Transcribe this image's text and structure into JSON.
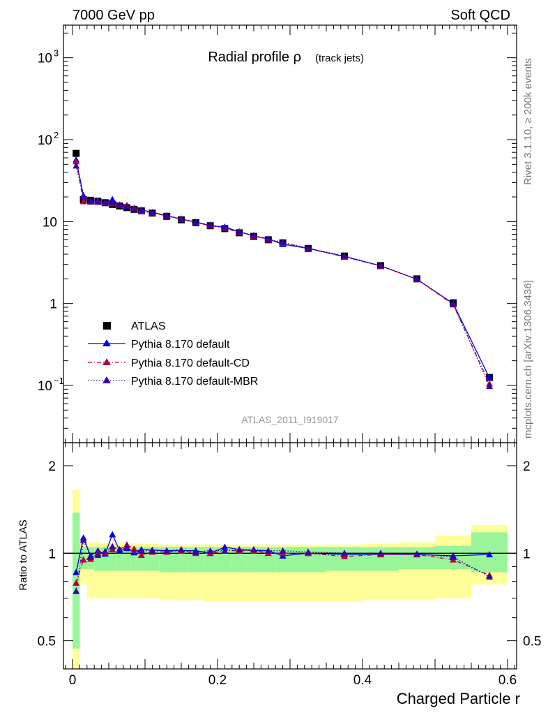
{
  "header": {
    "left": "7000 GeV pp",
    "right": "Soft QCD"
  },
  "side_labels": {
    "rivet": "Rivet 3.1.10, ≥ 200k events",
    "mcplots": "mcplots.cern.ch [arXiv:1306.3436]"
  },
  "chart_data": [
    {
      "type": "scatter",
      "title_main": "Radial profile ρ",
      "title_sub": "(track jets)",
      "watermark": "ATLAS_2011_I919017",
      "yscale": "log",
      "ylim": [
        0.02,
        2500
      ],
      "xlim": [
        -0.0125,
        0.6125
      ],
      "yticks_major": [
        {
          "value": 1000,
          "base": "10",
          "exp": "3"
        },
        {
          "value": 100,
          "base": "10",
          "exp": "2"
        },
        {
          "value": 10,
          "base": "10",
          "exp": ""
        },
        {
          "value": 1,
          "base": "1",
          "exp": ""
        },
        {
          "value": 0.1,
          "base": "10",
          "exp": "−1"
        }
      ],
      "legend_position": "lower-left",
      "series": [
        {
          "name": "ATLAS",
          "style": "square",
          "color": "#000000",
          "line": "none",
          "x": [
            0.005,
            0.015,
            0.025,
            0.035,
            0.045,
            0.055,
            0.065,
            0.075,
            0.085,
            0.095,
            0.11,
            0.13,
            0.15,
            0.17,
            0.19,
            0.21,
            0.23,
            0.25,
            0.27,
            0.29,
            0.325,
            0.375,
            0.425,
            0.475,
            0.525,
            0.575
          ],
          "y": [
            68,
            18.5,
            18.2,
            17.7,
            17,
            16.2,
            15.5,
            14.8,
            14.1,
            13.5,
            12.7,
            11.6,
            10.5,
            9.7,
            8.9,
            8.2,
            7.3,
            6.6,
            6.0,
            5.5,
            4.7,
            3.8,
            2.9,
            2.0,
            1.02,
            0.125
          ]
        },
        {
          "name": "Pythia 8.170 default",
          "style": "triangle",
          "color": "#0000e6",
          "line": "solid",
          "x": [
            0.005,
            0.015,
            0.025,
            0.035,
            0.045,
            0.055,
            0.065,
            0.075,
            0.085,
            0.095,
            0.11,
            0.13,
            0.15,
            0.17,
            0.19,
            0.21,
            0.23,
            0.25,
            0.27,
            0.29,
            0.325,
            0.375,
            0.425,
            0.475,
            0.525,
            0.575
          ],
          "y": [
            57,
            20.9,
            17.8,
            18.0,
            16.9,
            18.7,
            15.8,
            15.4,
            14.3,
            13.9,
            13.0,
            11.8,
            10.7,
            9.9,
            8.9,
            8.6,
            7.5,
            6.7,
            6.1,
            5.3,
            4.7,
            3.75,
            2.88,
            1.98,
            1.0,
            0.124
          ]
        },
        {
          "name": "Pythia 8.170 default-CD",
          "style": "triangle",
          "color": "#b8003c",
          "line": "dashdot",
          "x": [
            0.005,
            0.015,
            0.025,
            0.035,
            0.045,
            0.055,
            0.065,
            0.075,
            0.085,
            0.095,
            0.11,
            0.13,
            0.15,
            0.17,
            0.19,
            0.21,
            0.23,
            0.25,
            0.27,
            0.29,
            0.325,
            0.375,
            0.425,
            0.475,
            0.525,
            0.575
          ],
          "y": [
            54,
            17.6,
            17.4,
            17.7,
            17.1,
            16.7,
            16.0,
            15.8,
            14.6,
            13.3,
            12.8,
            11.7,
            10.7,
            9.7,
            8.9,
            8.3,
            7.4,
            6.7,
            6.0,
            5.5,
            4.7,
            3.7,
            2.87,
            1.98,
            0.97,
            0.105
          ]
        },
        {
          "name": "Pythia 8.170 default-MBR",
          "style": "triangle",
          "color": "#3c00a8",
          "line": "dotted",
          "x": [
            0.005,
            0.015,
            0.025,
            0.035,
            0.045,
            0.055,
            0.065,
            0.075,
            0.085,
            0.095,
            0.11,
            0.13,
            0.15,
            0.17,
            0.19,
            0.21,
            0.23,
            0.25,
            0.27,
            0.29,
            0.325,
            0.375,
            0.425,
            0.475,
            0.525,
            0.575
          ],
          "y": [
            48,
            20.5,
            17.6,
            17.4,
            17.3,
            17.1,
            15.9,
            15.6,
            14.2,
            13.8,
            12.9,
            11.8,
            10.8,
            9.8,
            9.1,
            8.4,
            7.5,
            6.8,
            6.1,
            5.6,
            4.75,
            3.8,
            2.9,
            1.99,
            0.99,
            0.098
          ]
        }
      ]
    },
    {
      "type": "scatter",
      "ylabel": "Ratio to ATLAS",
      "xlabel": "Charged Particle r",
      "yscale": "log",
      "ylim": [
        0.4,
        2.4
      ],
      "xlim": [
        -0.0125,
        0.6125
      ],
      "xticks": [
        {
          "value": 0,
          "label": "0"
        },
        {
          "value": 0.2,
          "label": "0.2"
        },
        {
          "value": 0.4,
          "label": "0.4"
        },
        {
          "value": 0.6,
          "label": "0.6"
        }
      ],
      "yticks": [
        {
          "value": 2,
          "label": "2"
        },
        {
          "value": 1,
          "label": "1"
        },
        {
          "value": 0.5,
          "label": "0.5"
        }
      ],
      "bands": {
        "edges": [
          0,
          0.01,
          0.02,
          0.03,
          0.04,
          0.05,
          0.06,
          0.07,
          0.08,
          0.09,
          0.1,
          0.12,
          0.14,
          0.16,
          0.18,
          0.2,
          0.22,
          0.24,
          0.26,
          0.28,
          0.3,
          0.35,
          0.4,
          0.45,
          0.5,
          0.55,
          0.6
        ],
        "yellow_lo": [
          0.32,
          0.78,
          0.7,
          0.7,
          0.7,
          0.7,
          0.7,
          0.7,
          0.7,
          0.7,
          0.7,
          0.69,
          0.69,
          0.69,
          0.68,
          0.68,
          0.68,
          0.68,
          0.68,
          0.68,
          0.68,
          0.68,
          0.69,
          0.69,
          0.7,
          0.78
        ],
        "yellow_hi": [
          1.65,
          1.1,
          1.09,
          1.09,
          1.08,
          1.08,
          1.08,
          1.08,
          1.08,
          1.08,
          1.08,
          1.07,
          1.07,
          1.07,
          1.07,
          1.07,
          1.07,
          1.07,
          1.07,
          1.07,
          1.07,
          1.07,
          1.08,
          1.09,
          1.15,
          1.25
        ],
        "green_lo": [
          0.47,
          0.88,
          0.88,
          0.87,
          0.87,
          0.87,
          0.87,
          0.87,
          0.87,
          0.87,
          0.87,
          0.86,
          0.86,
          0.86,
          0.86,
          0.86,
          0.86,
          0.86,
          0.86,
          0.86,
          0.86,
          0.87,
          0.87,
          0.88,
          0.88,
          0.86
        ],
        "green_hi": [
          1.38,
          1.05,
          1.05,
          1.05,
          1.05,
          1.05,
          1.05,
          1.05,
          1.05,
          1.05,
          1.05,
          1.05,
          1.05,
          1.05,
          1.05,
          1.05,
          1.05,
          1.05,
          1.05,
          1.05,
          1.05,
          1.05,
          1.05,
          1.05,
          1.06,
          1.18
        ]
      },
      "series": [
        {
          "name": "Pythia 8.170 default",
          "color": "#0000e6",
          "line": "solid",
          "x": [
            0.005,
            0.015,
            0.025,
            0.035,
            0.045,
            0.055,
            0.065,
            0.075,
            0.085,
            0.095,
            0.11,
            0.13,
            0.15,
            0.17,
            0.19,
            0.21,
            0.23,
            0.25,
            0.27,
            0.29,
            0.325,
            0.375,
            0.425,
            0.475,
            0.525,
            0.575
          ],
          "y": [
            0.86,
            1.13,
            0.98,
            1.02,
            0.995,
            1.16,
            1.02,
            1.04,
            1.01,
            1.03,
            1.025,
            1.02,
            1.02,
            1.02,
            1.0,
            1.05,
            1.03,
            1.02,
            1.02,
            0.98,
            1.0,
            0.99,
            0.99,
            0.99,
            0.98,
            0.99
          ]
        },
        {
          "name": "Pythia 8.170 default-CD",
          "color": "#b8003c",
          "line": "dashdot",
          "x": [
            0.005,
            0.015,
            0.025,
            0.035,
            0.045,
            0.055,
            0.065,
            0.075,
            0.085,
            0.095,
            0.11,
            0.13,
            0.15,
            0.17,
            0.19,
            0.21,
            0.23,
            0.25,
            0.27,
            0.29,
            0.325,
            0.375,
            0.425,
            0.475,
            0.525,
            0.575
          ],
          "y": [
            0.79,
            0.95,
            0.955,
            1.0,
            1.005,
            1.03,
            1.03,
            1.07,
            1.035,
            0.985,
            1.01,
            1.01,
            1.02,
            1.0,
            1.0,
            1.02,
            1.02,
            1.02,
            1.0,
            1.0,
            1.0,
            0.975,
            0.99,
            0.99,
            0.95,
            0.84
          ]
        },
        {
          "name": "Pythia 8.170 default-MBR",
          "color": "#3c00a8",
          "line": "dotted",
          "x": [
            0.005,
            0.015,
            0.025,
            0.035,
            0.045,
            0.055,
            0.065,
            0.075,
            0.085,
            0.095,
            0.11,
            0.13,
            0.15,
            0.17,
            0.19,
            0.21,
            0.23,
            0.25,
            0.27,
            0.29,
            0.325,
            0.375,
            0.425,
            0.475,
            0.525,
            0.575
          ],
          "y": [
            0.74,
            1.11,
            0.97,
            0.985,
            1.015,
            1.055,
            1.03,
            1.05,
            1.005,
            1.02,
            1.02,
            1.02,
            1.03,
            1.01,
            1.02,
            1.02,
            1.03,
            1.03,
            1.02,
            1.02,
            1.01,
            1.0,
            1.0,
            0.995,
            0.97,
            0.83
          ]
        }
      ]
    }
  ]
}
